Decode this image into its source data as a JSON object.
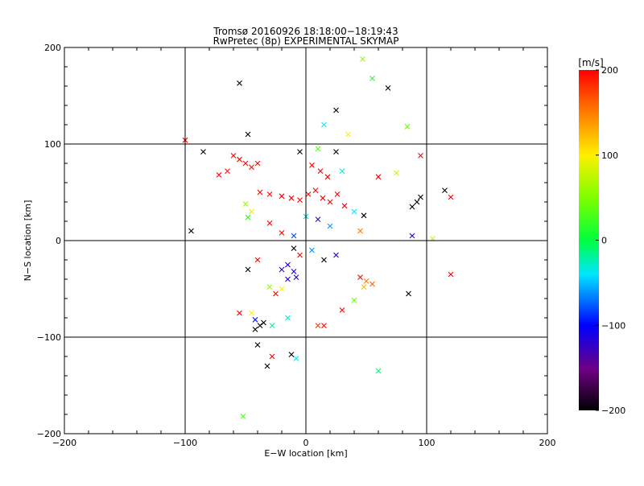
{
  "chart_data": {
    "type": "scatter",
    "title": "Tromsø 20160926 18:18:00−18:19:43",
    "subtitle": "RwPretec (8p) EXPERIMENTAL SKYMAP",
    "xlabel": "E−W location [km]",
    "ylabel": "N−S location [km]",
    "xlim": [
      -200,
      200
    ],
    "ylim": [
      -200,
      200
    ],
    "x_ticks": [
      -200,
      -100,
      0,
      100,
      200
    ],
    "y_ticks": [
      -200,
      -100,
      0,
      100,
      200
    ],
    "x_tick_labels": [
      "−200",
      "−100",
      "0",
      "100",
      "200"
    ],
    "y_tick_labels": [
      "−200",
      "−100",
      "0",
      "100",
      "200"
    ],
    "grid": true,
    "colorbar": {
      "label": "[m/s]",
      "range": [
        -200,
        200
      ],
      "ticks": [
        -200,
        -100,
        0,
        100,
        200
      ],
      "tick_labels": [
        "−200",
        "−100",
        "0",
        "100",
        "200"
      ]
    },
    "colors": {
      "axis": "#000000",
      "grid": "#000000"
    },
    "points": [
      {
        "x": -55,
        "y": 163,
        "v": -200,
        "m": "x"
      },
      {
        "x": 68,
        "y": 158,
        "v": -200,
        "m": "x"
      },
      {
        "x": 47,
        "y": 188,
        "v": 60,
        "m": "x"
      },
      {
        "x": 55,
        "y": 168,
        "v": 10,
        "m": "x"
      },
      {
        "x": -48,
        "y": 110,
        "v": -200,
        "m": "x"
      },
      {
        "x": 84,
        "y": 118,
        "v": 40,
        "m": "x"
      },
      {
        "x": 15,
        "y": 120,
        "v": -40,
        "m": "x"
      },
      {
        "x": 25,
        "y": 135,
        "v": -200,
        "m": "x"
      },
      {
        "x": 35,
        "y": 110,
        "v": 100,
        "m": "x"
      },
      {
        "x": -100,
        "y": 104,
        "v": 200,
        "m": "x"
      },
      {
        "x": -85,
        "y": 92,
        "v": -200,
        "m": "x"
      },
      {
        "x": -60,
        "y": 88,
        "v": 200,
        "m": "x"
      },
      {
        "x": -55,
        "y": 84,
        "v": 200,
        "m": "x"
      },
      {
        "x": -50,
        "y": 80,
        "v": 200,
        "m": "x"
      },
      {
        "x": -45,
        "y": 76,
        "v": 190,
        "m": "x"
      },
      {
        "x": -40,
        "y": 80,
        "v": 200,
        "m": "x"
      },
      {
        "x": -72,
        "y": 68,
        "v": 200,
        "m": "x"
      },
      {
        "x": -65,
        "y": 72,
        "v": 195,
        "m": "x"
      },
      {
        "x": -5,
        "y": 92,
        "v": -200,
        "m": "x"
      },
      {
        "x": 10,
        "y": 95,
        "v": 30,
        "m": "x"
      },
      {
        "x": 25,
        "y": 92,
        "v": -200,
        "m": "x"
      },
      {
        "x": 5,
        "y": 78,
        "v": 200,
        "m": "x"
      },
      {
        "x": 12,
        "y": 72,
        "v": 200,
        "m": "x"
      },
      {
        "x": 18,
        "y": 66,
        "v": 200,
        "m": "x"
      },
      {
        "x": 30,
        "y": 72,
        "v": -30,
        "m": "x"
      },
      {
        "x": 60,
        "y": 66,
        "v": 200,
        "m": "x"
      },
      {
        "x": 75,
        "y": 70,
        "v": 80,
        "m": "x"
      },
      {
        "x": 95,
        "y": 88,
        "v": 200,
        "m": "x"
      },
      {
        "x": 115,
        "y": 52,
        "v": -200,
        "m": "x"
      },
      {
        "x": 120,
        "y": 45,
        "v": 200,
        "m": "x"
      },
      {
        "x": 95,
        "y": 45,
        "v": -200,
        "m": "x"
      },
      {
        "x": 92,
        "y": 40,
        "v": -200,
        "m": "x"
      },
      {
        "x": 88,
        "y": 35,
        "v": -200,
        "m": "x"
      },
      {
        "x": -38,
        "y": 50,
        "v": 200,
        "m": "x"
      },
      {
        "x": -30,
        "y": 48,
        "v": 200,
        "m": "x"
      },
      {
        "x": -20,
        "y": 46,
        "v": 200,
        "m": "x"
      },
      {
        "x": -12,
        "y": 44,
        "v": 200,
        "m": "x"
      },
      {
        "x": -5,
        "y": 42,
        "v": 200,
        "m": "x"
      },
      {
        "x": 2,
        "y": 48,
        "v": 200,
        "m": "x"
      },
      {
        "x": 8,
        "y": 52,
        "v": 200,
        "m": "x"
      },
      {
        "x": 14,
        "y": 44,
        "v": 200,
        "m": "x"
      },
      {
        "x": 20,
        "y": 40,
        "v": 200,
        "m": "x"
      },
      {
        "x": 26,
        "y": 48,
        "v": 200,
        "m": "x"
      },
      {
        "x": 32,
        "y": 36,
        "v": 200,
        "m": "x"
      },
      {
        "x": 40,
        "y": 30,
        "v": -40,
        "m": "x"
      },
      {
        "x": 48,
        "y": 26,
        "v": -200,
        "m": "x"
      },
      {
        "x": -50,
        "y": 38,
        "v": 60,
        "m": "x"
      },
      {
        "x": -45,
        "y": 30,
        "v": 90,
        "m": "x"
      },
      {
        "x": -48,
        "y": 24,
        "v": 20,
        "m": "x"
      },
      {
        "x": -30,
        "y": 18,
        "v": 200,
        "m": "x"
      },
      {
        "x": -20,
        "y": 8,
        "v": 200,
        "m": "x"
      },
      {
        "x": -10,
        "y": 5,
        "v": -80,
        "m": "x"
      },
      {
        "x": 0,
        "y": 25,
        "v": -30,
        "m": "x"
      },
      {
        "x": 10,
        "y": 22,
        "v": -130,
        "m": "x"
      },
      {
        "x": 20,
        "y": 15,
        "v": -60,
        "m": "x"
      },
      {
        "x": 45,
        "y": 10,
        "v": 150,
        "m": "x"
      },
      {
        "x": 88,
        "y": 5,
        "v": -120,
        "m": "x"
      },
      {
        "x": 105,
        "y": 2,
        "v": 80,
        "m": "x"
      },
      {
        "x": -95,
        "y": 10,
        "v": -200,
        "m": "x"
      },
      {
        "x": -10,
        "y": -8,
        "v": -200,
        "m": "x"
      },
      {
        "x": -5,
        "y": -15,
        "v": 200,
        "m": "x"
      },
      {
        "x": 5,
        "y": -10,
        "v": -60,
        "m": "x"
      },
      {
        "x": 15,
        "y": -20,
        "v": -200,
        "m": "x"
      },
      {
        "x": 25,
        "y": -15,
        "v": -120,
        "m": "x"
      },
      {
        "x": -40,
        "y": -20,
        "v": 200,
        "m": "x"
      },
      {
        "x": -15,
        "y": -25,
        "v": -110,
        "m": "x"
      },
      {
        "x": -20,
        "y": -30,
        "v": -120,
        "m": "x"
      },
      {
        "x": -10,
        "y": -32,
        "v": -110,
        "m": "x"
      },
      {
        "x": -8,
        "y": -38,
        "v": -110,
        "m": "x"
      },
      {
        "x": -15,
        "y": -40,
        "v": -120,
        "m": "x"
      },
      {
        "x": -48,
        "y": -30,
        "v": -200,
        "m": "x"
      },
      {
        "x": -30,
        "y": -48,
        "v": 60,
        "m": "x"
      },
      {
        "x": -25,
        "y": -55,
        "v": 200,
        "m": "x"
      },
      {
        "x": -20,
        "y": -50,
        "v": 100,
        "m": "x"
      },
      {
        "x": 45,
        "y": -38,
        "v": 200,
        "m": "x"
      },
      {
        "x": 50,
        "y": -42,
        "v": 150,
        "m": "x"
      },
      {
        "x": 48,
        "y": -48,
        "v": 120,
        "m": "x"
      },
      {
        "x": 55,
        "y": -45,
        "v": 160,
        "m": "x"
      },
      {
        "x": 40,
        "y": -62,
        "v": 40,
        "m": "x"
      },
      {
        "x": 85,
        "y": -55,
        "v": -200,
        "m": "x"
      },
      {
        "x": 120,
        "y": -35,
        "v": 200,
        "m": "x"
      },
      {
        "x": -55,
        "y": -75,
        "v": 200,
        "m": "x"
      },
      {
        "x": -45,
        "y": -75,
        "v": 100,
        "m": "x"
      },
      {
        "x": -42,
        "y": -82,
        "v": -100,
        "m": "x"
      },
      {
        "x": -38,
        "y": -88,
        "v": -200,
        "m": "x"
      },
      {
        "x": -42,
        "y": -92,
        "v": -200,
        "m": "x"
      },
      {
        "x": -35,
        "y": -85,
        "v": -200,
        "m": "x"
      },
      {
        "x": -28,
        "y": -88,
        "v": -20,
        "m": "x"
      },
      {
        "x": -15,
        "y": -80,
        "v": -30,
        "m": "x"
      },
      {
        "x": -40,
        "y": -108,
        "v": -200,
        "m": "x"
      },
      {
        "x": -32,
        "y": -130,
        "v": -200,
        "m": "x"
      },
      {
        "x": -12,
        "y": -118,
        "v": -200,
        "m": "x"
      },
      {
        "x": -28,
        "y": -120,
        "v": 200,
        "m": "x"
      },
      {
        "x": -8,
        "y": -122,
        "v": -40,
        "m": "x"
      },
      {
        "x": 15,
        "y": -88,
        "v": 200,
        "m": "x"
      },
      {
        "x": 30,
        "y": -72,
        "v": 200,
        "m": "x"
      },
      {
        "x": 60,
        "y": -135,
        "v": -10,
        "m": "x"
      },
      {
        "x": -52,
        "y": -182,
        "v": 30,
        "m": "x"
      },
      {
        "x": 10,
        "y": -88,
        "v": 180,
        "m": "x"
      }
    ]
  }
}
